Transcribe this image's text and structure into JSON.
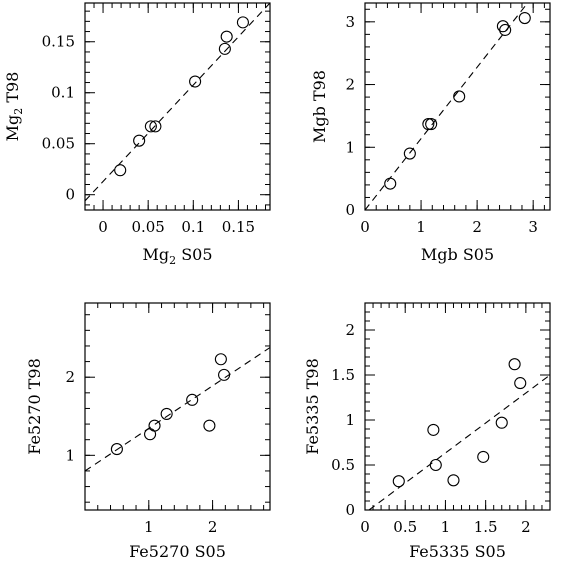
{
  "chart_data": [
    {
      "type": "scatter",
      "xlabel": "Mg2 S05",
      "ylabel": "Mg2 T98",
      "xlim": [
        -0.02,
        0.185
      ],
      "ylim": [
        -0.015,
        0.188
      ],
      "xticks": [
        0,
        0.05,
        0.1,
        0.15
      ],
      "xtick_labels": [
        "0",
        "0.05",
        "0.1",
        "0.15"
      ],
      "yticks": [
        0,
        0.05,
        0.1,
        0.15
      ],
      "ytick_labels": [
        "0",
        "0.05",
        "0.1",
        "0.15"
      ],
      "x_minor": 0.01,
      "y_minor": 0.01,
      "grid": false,
      "series": [
        {
          "points": [
            [
              0.019,
              0.024
            ],
            [
              0.04,
              0.053
            ],
            [
              0.053,
              0.067
            ],
            [
              0.058,
              0.067
            ],
            [
              0.102,
              0.111
            ],
            [
              0.135,
              0.143
            ],
            [
              0.137,
              0.155
            ],
            [
              0.155,
              0.169
            ]
          ]
        }
      ],
      "fit_line": {
        "style": "dashed",
        "from": [
          -0.02,
          -0.006
        ],
        "to": [
          0.185,
          0.188
        ]
      }
    },
    {
      "type": "scatter",
      "xlabel": "Mgb S05",
      "ylabel": "Mgb T98",
      "xlim": [
        0,
        3.3
      ],
      "ylim": [
        0,
        3.3
      ],
      "xticks": [
        0,
        1,
        2,
        3
      ],
      "xtick_labels": [
        "0",
        "1",
        "2",
        "3"
      ],
      "yticks": [
        0,
        1,
        2,
        3
      ],
      "ytick_labels": [
        "0",
        "1",
        "2",
        "3"
      ],
      "x_minor": 0.2,
      "y_minor": 0.2,
      "grid": false,
      "series": [
        {
          "points": [
            [
              0.45,
              0.42
            ],
            [
              0.8,
              0.9
            ],
            [
              1.13,
              1.37
            ],
            [
              1.18,
              1.37
            ],
            [
              1.68,
              1.81
            ],
            [
              2.46,
              2.93
            ],
            [
              2.5,
              2.87
            ],
            [
              2.85,
              3.06
            ]
          ]
        }
      ],
      "fit_line": {
        "style": "dashed",
        "from": [
          0,
          0
        ],
        "to": [
          2.9,
          3.3
        ]
      }
    },
    {
      "type": "scatter",
      "xlabel": "Fe5270 S05",
      "ylabel": "Fe5270 T98",
      "xlim": [
        0,
        2.9
      ],
      "ylim": [
        0.3,
        2.95
      ],
      "xticks": [
        1,
        2
      ],
      "xtick_labels": [
        "1",
        "2"
      ],
      "yticks": [
        1,
        2
      ],
      "ytick_labels": [
        "1",
        "2"
      ],
      "x_minor": 0.2,
      "y_minor": 0.2,
      "grid": false,
      "series": [
        {
          "points": [
            [
              0.5,
              1.08
            ],
            [
              1.02,
              1.27
            ],
            [
              1.09,
              1.38
            ],
            [
              1.28,
              1.53
            ],
            [
              1.68,
              1.71
            ],
            [
              1.95,
              1.38
            ],
            [
              2.13,
              2.23
            ],
            [
              2.18,
              2.03
            ]
          ]
        }
      ],
      "fit_line": {
        "style": "dashed",
        "from": [
          0,
          0.8
        ],
        "to": [
          2.9,
          2.38
        ]
      }
    },
    {
      "type": "scatter",
      "xlabel": "Fe5335 S05",
      "ylabel": "Fe5335 T98",
      "xlim": [
        0,
        2.3
      ],
      "ylim": [
        0,
        2.3
      ],
      "xticks": [
        0,
        0.5,
        1,
        1.5,
        2
      ],
      "xtick_labels": [
        "0",
        "0.5",
        "1",
        "1.5",
        "2"
      ],
      "yticks": [
        0,
        0.5,
        1,
        1.5,
        2
      ],
      "ytick_labels": [
        "0",
        "0.5",
        "1",
        "1.5",
        "2"
      ],
      "x_minor": 0.1,
      "y_minor": 0.1,
      "grid": false,
      "series": [
        {
          "points": [
            [
              0.42,
              0.32
            ],
            [
              0.85,
              0.89
            ],
            [
              0.88,
              0.5
            ],
            [
              1.1,
              0.33
            ],
            [
              1.47,
              0.59
            ],
            [
              1.7,
              0.97
            ],
            [
              1.86,
              1.62
            ],
            [
              1.93,
              1.41
            ]
          ]
        }
      ],
      "fit_line": {
        "style": "dashed",
        "from": [
          0.05,
          0
        ],
        "to": [
          2.3,
          1.5
        ]
      }
    }
  ]
}
